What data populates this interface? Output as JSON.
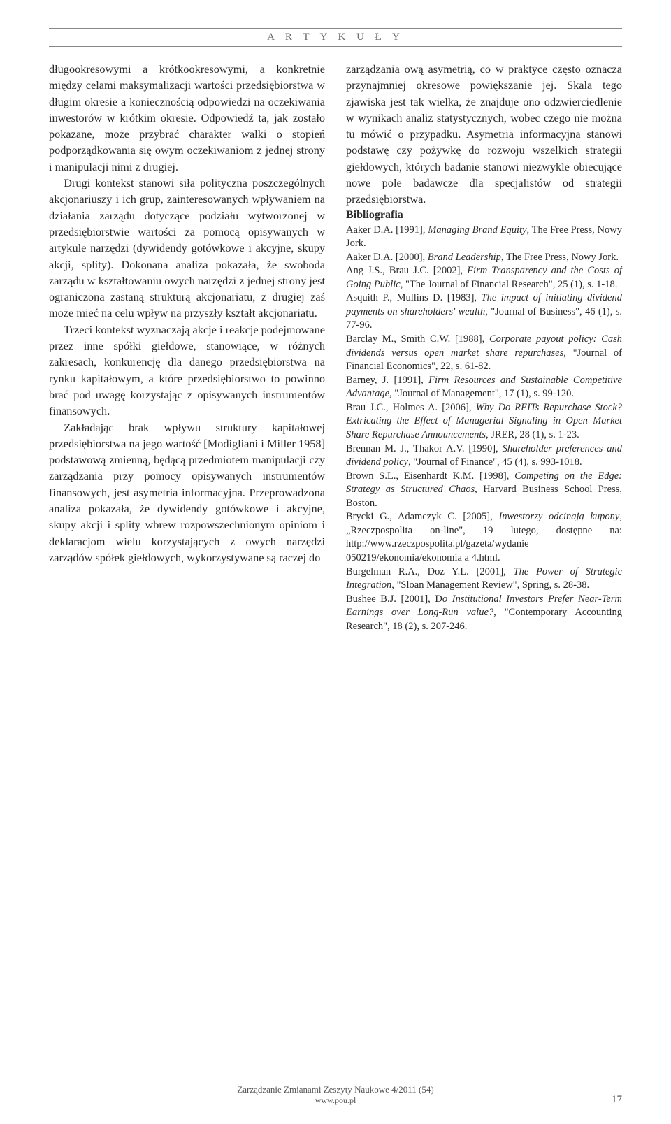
{
  "header": {
    "section_label": "A R T Y K U Ł Y"
  },
  "left_column": {
    "p1": "długookresowymi a krótkookresowymi, a konkretnie między celami maksymalizacji wartości przedsiębiorstwa w długim okresie a koniecznością odpowiedzi na oczekiwania inwestorów w krótkim okresie. Odpowiedź ta, jak zostało pokazane, może przybrać charakter walki o stopień podporządkowania się owym oczekiwaniom z jednej strony i manipulacji nimi z drugiej.",
    "p2": "Drugi kontekst stanowi siła polityczna poszczególnych akcjonariuszy i ich grup, zainteresowanych wpływaniem na działania zarządu dotyczące podziału wytworzonej w przedsiębiorstwie wartości za pomocą opisywanych w artykule narzędzi (dywidendy gotówkowe i akcyjne, skupy akcji, splity). Dokonana analiza pokazała, że swoboda zarządu w kształtowaniu owych narzędzi z jednej strony jest ograniczona zastaną strukturą akcjonariatu, z drugiej zaś może mieć na celu wpływ na przyszły kształt akcjonariatu.",
    "p3": "Trzeci kontekst wyznaczają akcje i reakcje podejmowane przez inne spółki giełdowe, stanowiące, w różnych zakresach, konkurencję dla danego przedsiębiorstwa na rynku kapitałowym, a które przedsiębiorstwo to powinno brać pod uwagę korzystając z opisywanych instrumentów finansowych.",
    "p4": "Zakładając brak wpływu struktury kapitałowej przedsiębiorstwa na jego wartość [Modigliani i Miller 1958] podstawową zmienną, będącą przedmiotem manipulacji czy zarządzania przy pomocy opisywanych instrumentów finansowych, jest asymetria informacyjna. Przeprowadzona analiza pokazała, że dywidendy gotówkowe i akcyjne, skupy akcji i splity wbrew rozpowszechnionym opiniom i deklaracjom wielu korzystających z owych narzędzi zarządów spółek giełdowych, wykorzystywane są raczej do"
  },
  "right_column": {
    "p1": "zarządzania ową asymetrią, co w praktyce często oznacza przynajmniej okresowe powiększanie jej. Skala tego zjawiska jest tak wielka, że znajduje ono odzwierciedlenie w wynikach analiz statystycznych, wobec czego nie można tu mówić o przypadku. Asymetria informacyjna stanowi podstawę czy pożywkę do rozwoju wszelkich strategii giełdowych, których badanie stanowi niezwykle obiecujące nowe pole badawcze dla specjalistów od strategii przedsiębiorstwa.",
    "bib_heading": "Bibliografia",
    "refs": [
      "Aaker D.A. [1991], <em>Managing Brand Equity</em>, The Free Press, Nowy Jork.",
      "Aaker D.A. [2000], <em>Brand Leadership</em>, The Free Press, Nowy Jork.",
      "Ang J.S., Brau J.C. [2002], <em>Firm Transparency and the Costs of Going Public</em>, \"The Journal of Financial Research\", 25 (1), s. 1-18.",
      "Asquith P., Mullins D. [1983], <em>The impact of initiating dividend payments on shareholders' wealth</em>, \"Journal of Business\", 46 (1), s. 77-96.",
      "Barclay M., Smith C.W. [1988], <em>Corporate payout policy: Cash dividends versus open market share repurchases</em>, \"Journal of Financial Economics\", 22, s. 61-82.",
      "Barney, J. [1991], <em>Firm Resources and Sustainable Competitive Advantage</em>, \"Journal of Management\", 17 (1), s. 99-120.",
      "Brau J.C., Holmes A. [2006], <em>Why Do REITs Repurchase Stock? Extricating the Effect of Managerial Signaling in Open Market Share Repurchase Announcements</em>, JRER, 28 (1), s. 1-23.",
      "Brennan M. J., Thakor A.V. [1990], <em>Shareholder preferences and dividend policy</em>, \"Journal of Finance\", 45 (4), s. 993-1018.",
      "Brown S.L., Eisenhardt K.M. [1998], <em>Competing on the Edge: Strategy as Structured Chaos</em>, Harvard Business School Press, Boston.",
      "Brycki G., Adamczyk C. [2005], <em>Inwestorzy odcinają kupony</em>, „Rzeczpospolita on-line\", 19 lutego, dostępne na: http://www.rzeczpospolita.pl/gazeta/wydanie 050219/ekonomia/ekonomia a 4.html.",
      "Burgelman R.A., Doz Y.L. [2001], <em>The Power of Strategic Integration</em>, \"Sloan Management Review\", Spring, s. 28-38.",
      "Bushee B.J. [2001], D<em>o Institutional Investors Prefer Near-Term Earnings over Long-Run value?</em>, \"Contemporary Accounting Research\", 18 (2), s. 207-246."
    ]
  },
  "footer": {
    "line1": "Zarządzanie Zmianami Zeszyty Naukowe 4/2011 (54)",
    "line2": "www.pou.pl",
    "page_number": "17"
  }
}
